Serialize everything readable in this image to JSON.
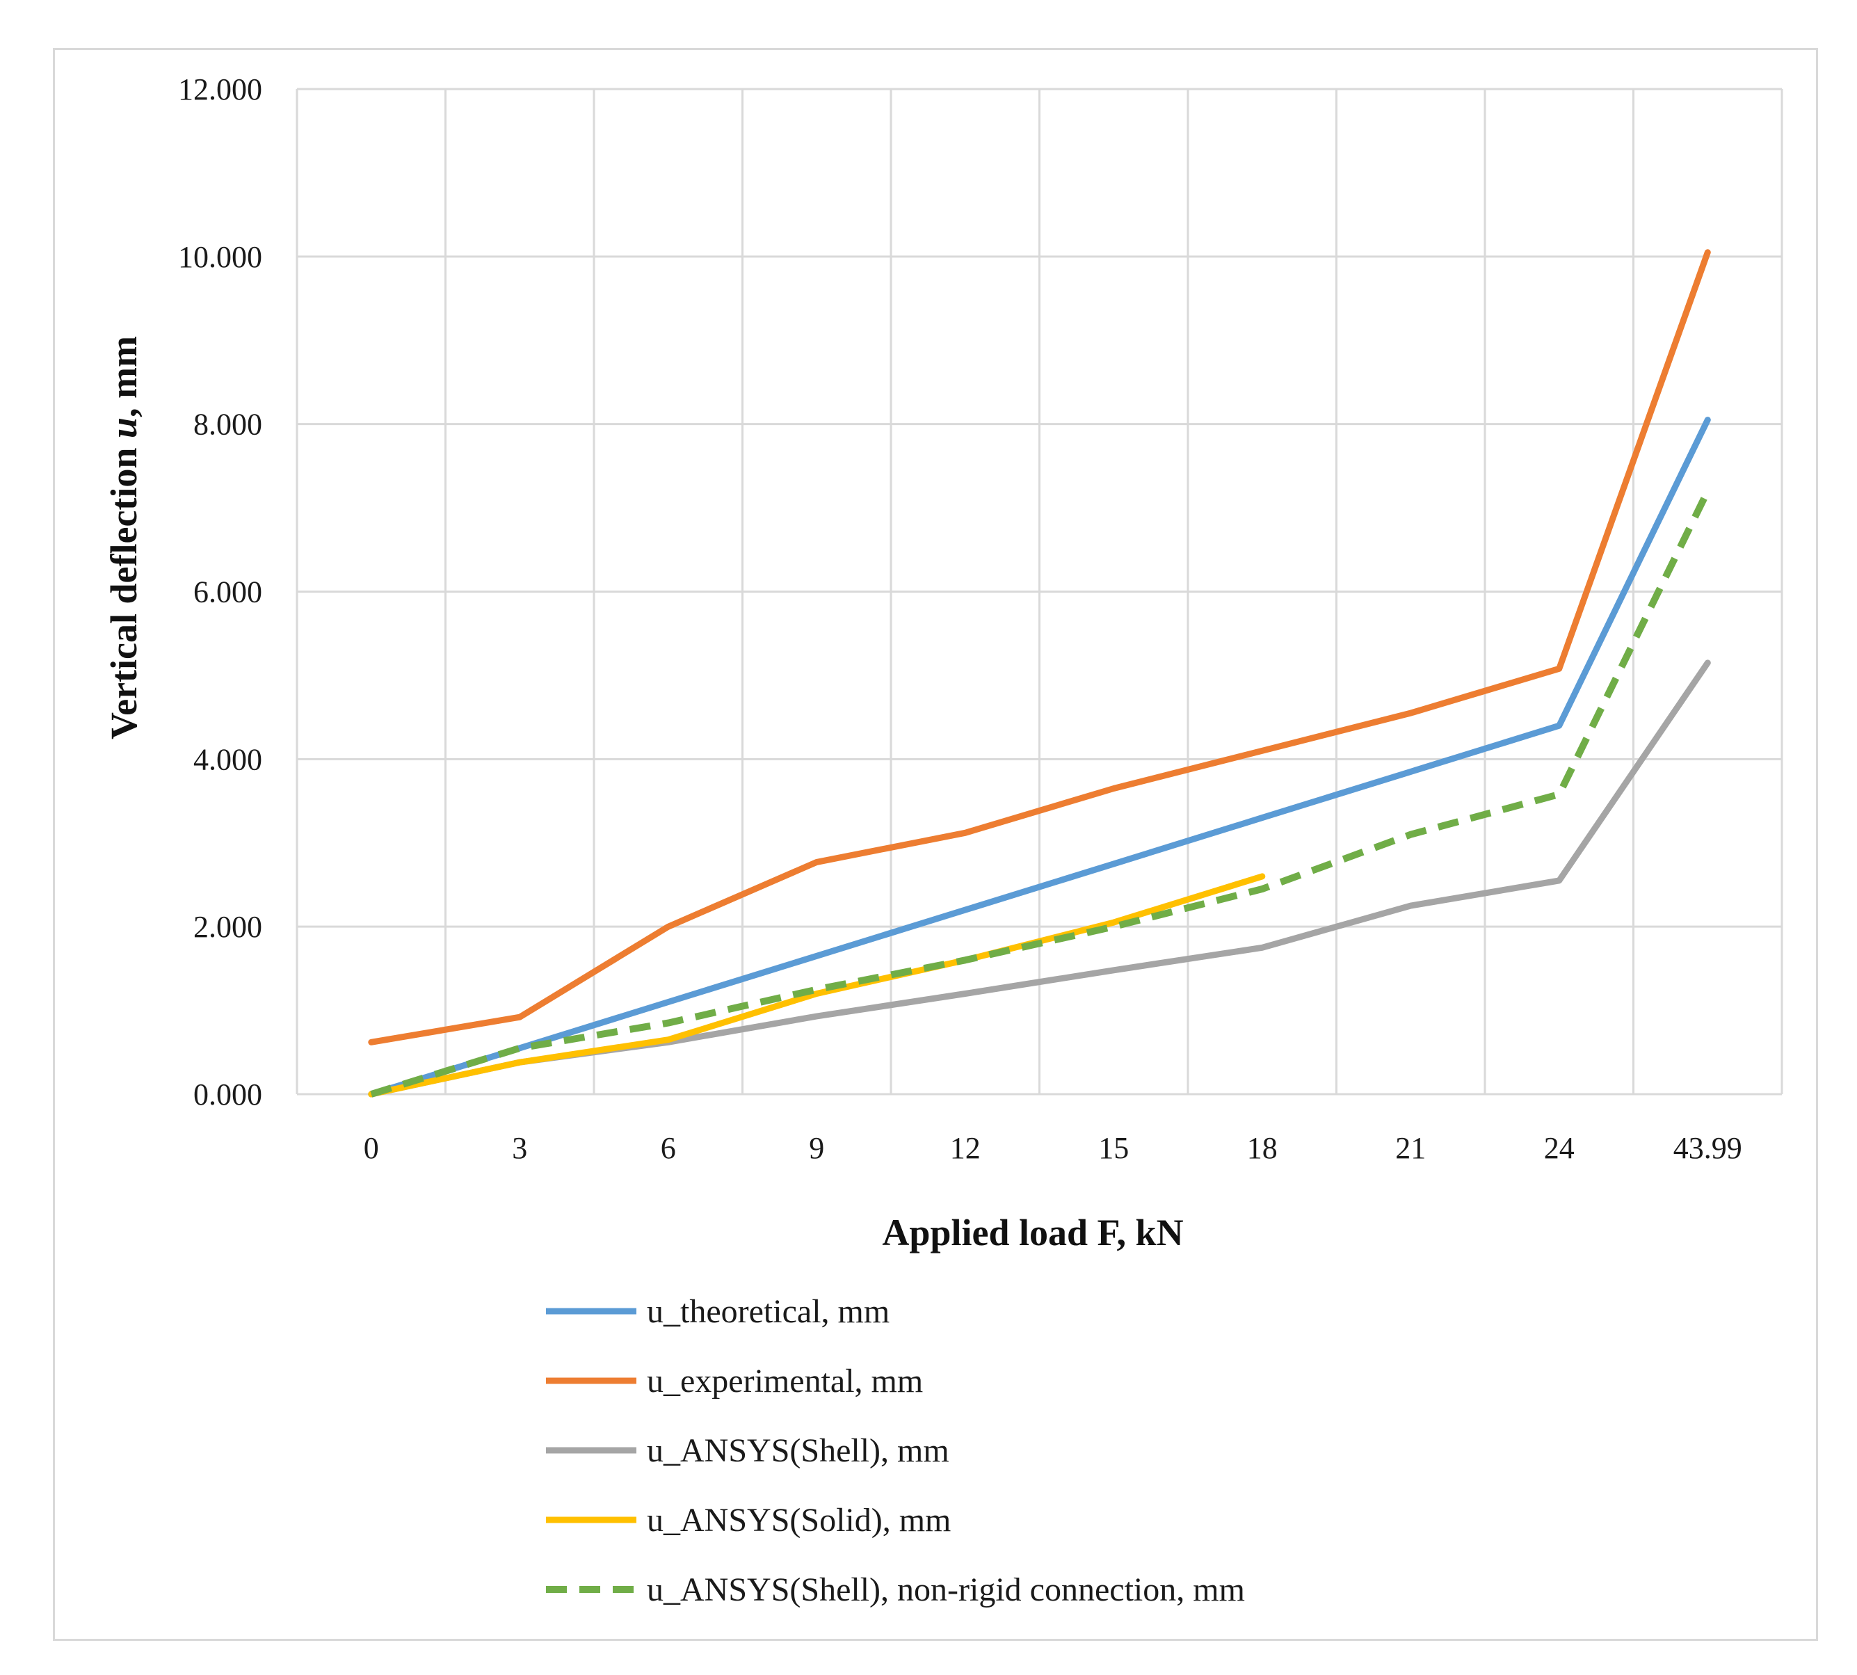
{
  "chart_data": {
    "type": "line",
    "title": "",
    "xlabel": "Applied load F, kN",
    "ylabel_main": "Vertical deflection ",
    "ylabel_var": "u",
    "ylabel_unit": ", mm",
    "categories": [
      "0",
      "3",
      "6",
      "9",
      "12",
      "15",
      "18",
      "21",
      "24",
      "43.99"
    ],
    "ylim": [
      0,
      12
    ],
    "yticks": [
      0,
      2,
      4,
      6,
      8,
      10,
      12
    ],
    "ytick_labels": [
      "0.000",
      "2.000",
      "4.000",
      "6.000",
      "8.000",
      "10.000",
      "12.000"
    ],
    "grid": true,
    "legend_position": "bottom",
    "series": [
      {
        "name": "u_theoretical, mm",
        "color": "#5b9bd5",
        "dashed": false,
        "values": [
          0.0,
          0.55,
          1.1,
          1.65,
          2.2,
          2.75,
          3.3,
          3.85,
          4.4,
          8.05
        ]
      },
      {
        "name": "u_experimental, mm",
        "color": "#ed7d31",
        "dashed": false,
        "values": [
          0.62,
          0.92,
          2.0,
          2.77,
          3.12,
          3.65,
          4.1,
          4.55,
          5.08,
          10.05
        ]
      },
      {
        "name": "u_ANSYS(Shell), mm",
        "color": "#a5a5a5",
        "dashed": false,
        "values": [
          0.0,
          0.38,
          0.62,
          0.93,
          1.2,
          1.48,
          1.75,
          2.25,
          2.55,
          5.15
        ]
      },
      {
        "name": "u_ANSYS(Solid), mm",
        "color": "#ffc000",
        "dashed": false,
        "values": [
          0.0,
          0.38,
          0.65,
          1.2,
          1.6,
          2.05,
          2.6,
          null,
          null,
          null
        ]
      },
      {
        "name": "u_ANSYS(Shell), non-rigid connection, mm",
        "color": "#70ad47",
        "dashed": true,
        "values": [
          0.0,
          0.55,
          0.85,
          1.25,
          1.6,
          2.0,
          2.45,
          3.1,
          3.58,
          7.2
        ]
      }
    ]
  }
}
